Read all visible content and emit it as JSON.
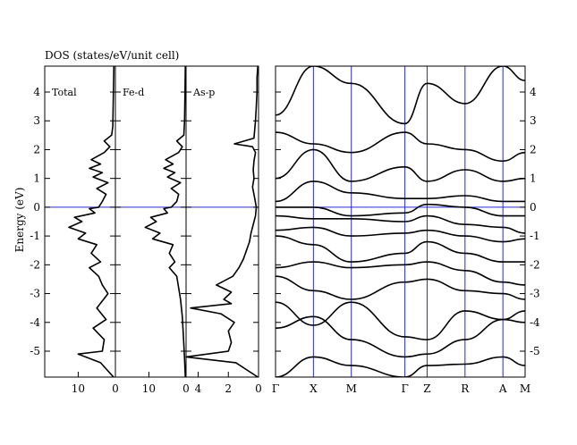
{
  "chart_data": [
    {
      "type": "line",
      "panel": "dos",
      "title": "DOS (states/eV/unit cell)",
      "ylabel": "Energy (eV)",
      "ylim": [
        -5.9,
        4.9
      ],
      "yticks": [
        -5,
        -4,
        -3,
        -2,
        -1,
        0,
        1,
        2,
        3,
        4
      ],
      "fermi_level": 0,
      "subpanels": [
        {
          "label": "Total",
          "xlim": [
            19,
            0
          ],
          "xticks": [
            10,
            0
          ],
          "series": [
            {
              "y": [
                -5.9,
                -5.4,
                -5.1,
                -5.0,
                -4.6,
                -4.2,
                -3.9,
                -3.5,
                -3.0,
                -2.7,
                -2.4,
                -2.1,
                -1.9,
                -1.6,
                -1.3,
                -1.1,
                -0.9,
                -0.7,
                -0.5,
                -0.35,
                -0.2,
                -0.05,
                0.0,
                0.2,
                0.45,
                0.65,
                0.85,
                1.05,
                1.2,
                1.35,
                1.5,
                1.65,
                1.9,
                2.1,
                2.3,
                2.5,
                2.8,
                3.5,
                4.2,
                4.9
              ],
              "x": [
                0.5,
                4.0,
                10.0,
                3.5,
                3.0,
                6.0,
                2.5,
                5.0,
                2.0,
                3.5,
                4.5,
                7.0,
                4.0,
                6.5,
                5.0,
                10.0,
                8.0,
                12.5,
                9.0,
                11.0,
                5.5,
                7.0,
                4.5,
                3.5,
                2.5,
                5.0,
                2.0,
                6.0,
                3.5,
                7.0,
                4.0,
                6.5,
                3.0,
                1.5,
                3.0,
                1.0,
                0.7,
                0.6,
                0.5,
                0.4
              ]
            }
          ]
        },
        {
          "label": "Fe-d",
          "xlim": [
            19,
            0
          ],
          "xticks": [
            10,
            0
          ],
          "series": [
            {
              "y": [
                -5.9,
                -5.0,
                -4.3,
                -3.8,
                -3.2,
                -2.8,
                -2.4,
                -2.1,
                -1.9,
                -1.6,
                -1.3,
                -1.1,
                -0.9,
                -0.7,
                -0.5,
                -0.35,
                -0.2,
                -0.05,
                0.0,
                0.2,
                0.45,
                0.65,
                0.85,
                1.05,
                1.2,
                1.35,
                1.5,
                1.65,
                1.9,
                2.1,
                2.3,
                2.5,
                3.0,
                4.0,
                4.9
              ],
              "x": [
                0.2,
                0.5,
                0.8,
                1.0,
                1.5,
                2.0,
                2.5,
                4.5,
                3.0,
                4.5,
                3.5,
                9.0,
                7.0,
                11.0,
                8.0,
                9.5,
                5.0,
                6.0,
                4.0,
                2.5,
                2.0,
                4.0,
                1.5,
                5.0,
                3.0,
                6.0,
                3.5,
                5.5,
                2.0,
                1.0,
                2.5,
                0.6,
                0.4,
                0.3,
                0.2
              ]
            }
          ]
        },
        {
          "label": "As-p",
          "xlim": [
            4.8,
            0
          ],
          "xticks": [
            4,
            2,
            0
          ],
          "series": [
            {
              "y": [
                -5.9,
                -5.4,
                -5.2,
                -5.0,
                -4.7,
                -4.3,
                -4.0,
                -3.7,
                -3.5,
                -3.35,
                -3.2,
                -2.95,
                -2.7,
                -2.4,
                -2.1,
                -1.8,
                -1.5,
                -1.2,
                -0.9,
                -0.6,
                -0.3,
                0.0,
                0.3,
                0.7,
                1.0,
                1.3,
                1.6,
                1.9,
                2.1,
                2.2,
                2.4,
                3.0,
                3.5,
                4.0,
                4.5,
                4.9
              ],
              "x": [
                0.05,
                1.5,
                4.8,
                2.0,
                1.8,
                2.0,
                1.6,
                2.5,
                4.5,
                1.8,
                2.3,
                1.8,
                2.8,
                1.7,
                1.3,
                1.0,
                0.8,
                0.6,
                0.5,
                0.35,
                0.2,
                0.15,
                0.25,
                0.4,
                0.3,
                0.35,
                0.3,
                0.2,
                0.4,
                1.6,
                0.3,
                0.2,
                0.15,
                0.1,
                0.1,
                0.05
              ]
            }
          ]
        }
      ]
    },
    {
      "type": "line",
      "panel": "bands",
      "xlabel": "",
      "ylim": [
        -5.9,
        4.9
      ],
      "yticks": [
        -5,
        -4,
        -3,
        -2,
        -1,
        0,
        1,
        2,
        3,
        4
      ],
      "k_labels": [
        "Γ",
        "X",
        "M",
        "Γ",
        "Z",
        "R",
        "A",
        "M"
      ],
      "k_positions": [
        0,
        0.5,
        1.0,
        1.707,
        2.0,
        2.5,
        3.0,
        3.293
      ],
      "fermi_level": 0,
      "series": [
        {
          "x": [
            0,
            0.5,
            1.0,
            1.707,
            2.0,
            2.5,
            3.0,
            3.293
          ],
          "y": [
            -5.9,
            -5.2,
            -5.5,
            -5.9,
            -5.5,
            -5.45,
            -5.2,
            -5.5
          ]
        },
        {
          "x": [
            0,
            0.5,
            1.0,
            1.707,
            2.0,
            2.5,
            3.0,
            3.293
          ],
          "y": [
            -4.2,
            -3.8,
            -4.6,
            -5.2,
            -5.1,
            -4.6,
            -3.9,
            -4.0
          ]
        },
        {
          "x": [
            0,
            0.5,
            1.0,
            1.707,
            2.0,
            2.5,
            3.0,
            3.293
          ],
          "y": [
            -3.3,
            -4.1,
            -3.3,
            -4.5,
            -4.6,
            -3.6,
            -3.9,
            -3.6
          ]
        },
        {
          "x": [
            0,
            0.5,
            1.0,
            1.707,
            2.0,
            2.5,
            3.0,
            3.293
          ],
          "y": [
            -2.4,
            -2.9,
            -3.2,
            -2.6,
            -2.5,
            -2.9,
            -3.0,
            -3.2
          ]
        },
        {
          "x": [
            0,
            0.5,
            1.0,
            1.707,
            2.0,
            2.5,
            3.0,
            3.293
          ],
          "y": [
            -2.1,
            -1.9,
            -2.1,
            -2.0,
            -1.9,
            -2.2,
            -2.6,
            -2.7
          ]
        },
        {
          "x": [
            0,
            0.5,
            1.0,
            1.707,
            2.0,
            2.5,
            3.0,
            3.293
          ],
          "y": [
            -1.0,
            -1.3,
            -1.9,
            -1.6,
            -1.2,
            -1.6,
            -1.9,
            -1.9
          ]
        },
        {
          "x": [
            0,
            0.5,
            1.0,
            1.707,
            2.0,
            2.5,
            3.0,
            3.293
          ],
          "y": [
            -0.8,
            -0.7,
            -1.0,
            -0.9,
            -0.8,
            -1.0,
            -1.2,
            -1.1
          ]
        },
        {
          "x": [
            0,
            0.5,
            1.0,
            1.707,
            2.0,
            2.5,
            3.0,
            3.293
          ],
          "y": [
            -0.3,
            -0.4,
            -0.4,
            -0.5,
            -0.3,
            -0.6,
            -0.7,
            -0.9
          ]
        },
        {
          "x": [
            0,
            0.5,
            1.0,
            1.707,
            2.0,
            2.5,
            3.0,
            3.293
          ],
          "y": [
            0.0,
            0.0,
            -0.3,
            -0.2,
            0.1,
            0.0,
            -0.3,
            -0.3
          ]
        },
        {
          "x": [
            0,
            0.5,
            1.0,
            1.707,
            2.0,
            2.5,
            3.0,
            3.293
          ],
          "y": [
            0.2,
            0.9,
            0.5,
            0.3,
            0.3,
            0.4,
            0.2,
            0.2
          ]
        },
        {
          "x": [
            0,
            0.5,
            1.0,
            1.707,
            2.0,
            2.5,
            3.0,
            3.293
          ],
          "y": [
            1.0,
            2.0,
            0.9,
            1.4,
            0.9,
            1.3,
            0.9,
            1.0
          ]
        },
        {
          "x": [
            0,
            0.5,
            1.0,
            1.707,
            2.0,
            2.5,
            3.0,
            3.293
          ],
          "y": [
            2.6,
            2.2,
            1.9,
            2.6,
            2.2,
            2.0,
            1.6,
            1.9
          ]
        },
        {
          "x": [
            0,
            0.5,
            1.0,
            1.707,
            2.0,
            2.5,
            3.0,
            3.293
          ],
          "y": [
            3.2,
            4.9,
            4.3,
            2.9,
            4.3,
            3.6,
            4.9,
            4.4
          ]
        }
      ]
    }
  ],
  "colors": {
    "line": "#000000",
    "grid": "#2a2ad8",
    "axis": "#000000"
  }
}
